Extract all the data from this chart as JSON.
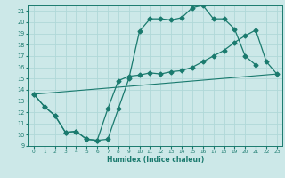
{
  "xlabel": "Humidex (Indice chaleur)",
  "xlim": [
    -0.5,
    23.5
  ],
  "ylim": [
    9,
    21.5
  ],
  "xticks": [
    0,
    1,
    2,
    3,
    4,
    5,
    6,
    7,
    8,
    9,
    10,
    11,
    12,
    13,
    14,
    15,
    16,
    17,
    18,
    19,
    20,
    21,
    22,
    23
  ],
  "yticks": [
    9,
    10,
    11,
    12,
    13,
    14,
    15,
    16,
    17,
    18,
    19,
    20,
    21
  ],
  "bg_color": "#cce8e8",
  "line_color": "#1a7a6e",
  "grid_color": "#b0d8d8",
  "line1_x": [
    0,
    1,
    2,
    3,
    4,
    5,
    6,
    7,
    8,
    9,
    10,
    11,
    12,
    13,
    14,
    15,
    16,
    17,
    18,
    19,
    20,
    21,
    22,
    23
  ],
  "line1_y": [
    13.6,
    12.5,
    11.7,
    10.2,
    10.3,
    9.6,
    9.5,
    9.6,
    12.3,
    15.0,
    19.2,
    20.3,
    20.3,
    20.2,
    20.4,
    21.3,
    21.5,
    20.3,
    20.3,
    19.4,
    17.0,
    16.2,
    null,
    null
  ],
  "line2_x": [
    0,
    1,
    2,
    3,
    4,
    5,
    6,
    7,
    8,
    9,
    10,
    11,
    12,
    13,
    14,
    15,
    16,
    17,
    18,
    19,
    20,
    21,
    22,
    23
  ],
  "line2_y": [
    13.6,
    12.5,
    11.7,
    10.2,
    10.3,
    9.6,
    9.5,
    12.3,
    14.8,
    15.2,
    15.3,
    15.5,
    15.4,
    15.6,
    15.7,
    16.0,
    16.5,
    17.0,
    17.5,
    18.2,
    18.8,
    19.3,
    16.5,
    15.4
  ],
  "line3_x": [
    0,
    23
  ],
  "line3_y": [
    13.6,
    15.4
  ]
}
